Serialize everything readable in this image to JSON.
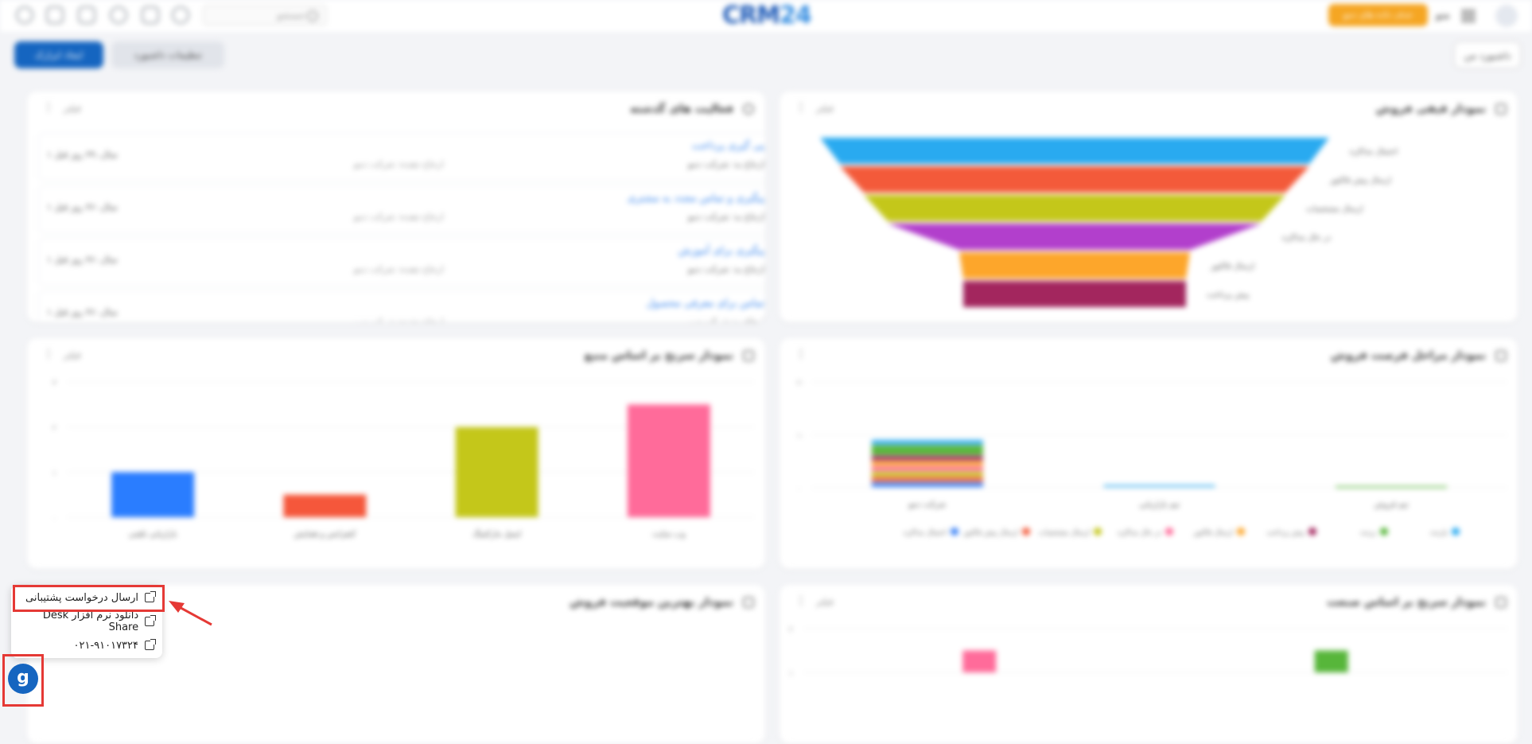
{
  "header": {
    "search_placeholder": "جستجو",
    "logo_main": "CRM",
    "logo_num": "24",
    "orange_button": "حذف داده های دمو",
    "menu_label": "منو",
    "icons": [
      "add-circle-icon",
      "home-icon",
      "calendar-icon",
      "chat-icon",
      "clipboard-icon",
      "cloud-icon"
    ]
  },
  "toolbar": {
    "add_widget": "ایجاد ابزارک",
    "dashboard_settings": "تنظیمات داشبورد",
    "my_dashboard": "داشبورد من"
  },
  "common": {
    "filter": "فیلتر",
    "dots": "⋮"
  },
  "cards": {
    "funnel": {
      "title": "نمودار قیفی فروش",
      "stages": [
        "احتمال مذاکره",
        "ارسال پیش فاکتور",
        "ارسال مشخصات",
        "در حال مذاکره",
        "ارسال فاکتور",
        "پیش پرداخت"
      ],
      "colors": [
        "#29aaf0",
        "#f35a3a",
        "#c4c71a",
        "#b23fcc",
        "#fda62b",
        "#a3265e"
      ]
    },
    "activities": {
      "title": "فعالیت های گذشته",
      "items": [
        {
          "title": "پی گیری پرداخت",
          "sub": "ارجاع به: شرکت دمو",
          "mid": "ارجاع دهنده: شرکت دمو",
          "time": "۱ سال، ۳۹ روز قبل"
        },
        {
          "title": "پیگیری و تماس مجدد به مشتری",
          "sub": "ارجاع به: شرکت دمو",
          "mid": "ارجاع دهنده: شرکت دمو",
          "time": "۱ سال، ۴۶ روز قبل"
        },
        {
          "title": "پیگیری برای آموزش",
          "sub": "ارجاع به: شرکت دمو",
          "mid": "ارجاع دهنده: شرکت دمو",
          "time": "۱ سال، ۴۶ روز قبل"
        },
        {
          "title": "تماس برای معرفی محصول",
          "sub": "ارجاع به: شرکت دمو",
          "mid": "ارجاع دهنده: شرکت دمو",
          "time": "۱ سال، ۴۶ روز قبل"
        }
      ]
    },
    "source": {
      "title": "نمودار سرنخ بر اساس منبع"
    },
    "stages": {
      "title": "نمودار مراحل فرصت فروش"
    },
    "best": {
      "title": "نمودار بهترین موقعیت فروش"
    },
    "industry": {
      "title": "نمودار سرنخ بر اساس صنعت"
    }
  },
  "chart_data": [
    {
      "type": "bar",
      "categories": [
        "بازاریابی تلفنی",
        "کنفرانس و همایش",
        "ایمیل مارکتینگ",
        "وب سایت"
      ],
      "values": [
        1,
        0.5,
        2,
        2.5
      ],
      "colors": [
        "#2a7dff",
        "#f5573b",
        "#c4c71a",
        "#ff6b9a"
      ],
      "ylim": [
        0,
        3
      ],
      "yticks": [
        "۰",
        "۱",
        "۲",
        "۳"
      ]
    },
    {
      "type": "bar",
      "stacked": true,
      "categories": [
        "شرکت دمو",
        "تیم بازاریابی",
        "تیم فروش"
      ],
      "series": [
        {
          "name": "احتمال مذاکره",
          "color": "#3b82f6",
          "values": [
            1,
            0,
            0
          ]
        },
        {
          "name": "ارسال پیش فاکتور",
          "color": "#f35a3a",
          "values": [
            1,
            0,
            0
          ]
        },
        {
          "name": "ارسال مشخصات",
          "color": "#c4c71a",
          "values": [
            1,
            0,
            0
          ]
        },
        {
          "name": "در حال مذاکره",
          "color": "#ff6b9a",
          "values": [
            1,
            0,
            0
          ]
        },
        {
          "name": "ارسال فاکتور",
          "color": "#fda62b",
          "values": [
            1,
            0,
            0
          ]
        },
        {
          "name": "پیش پرداخت",
          "color": "#a3265e",
          "values": [
            1,
            0,
            0
          ]
        },
        {
          "name": "برنده",
          "color": "#57b63a",
          "values": [
            2,
            0,
            0.3
          ]
        },
        {
          "name": "بازنده",
          "color": "#29aaf0",
          "values": [
            1,
            0.5,
            0
          ]
        }
      ],
      "ylim": [
        0,
        20
      ],
      "yticks": [
        "۰",
        "۱۰",
        "۲۰"
      ]
    },
    {
      "type": "bar",
      "categories": [
        "",
        ""
      ],
      "values": [
        1,
        1
      ],
      "colors": [
        "#ff6b9a",
        "#57b63a"
      ],
      "ylim": [
        0,
        2
      ],
      "yticks": [
        "۱",
        "۲"
      ]
    }
  ],
  "support_popup": {
    "items": [
      {
        "label": "ارسال درخواست پشتیبانی"
      },
      {
        "label": "دانلود نرم افزار Desk Share"
      },
      {
        "label": "۰۲۱-۹۱۰۱۷۳۲۴"
      }
    ]
  },
  "fab_glyph": "g",
  "annotation_color": "#e53935"
}
